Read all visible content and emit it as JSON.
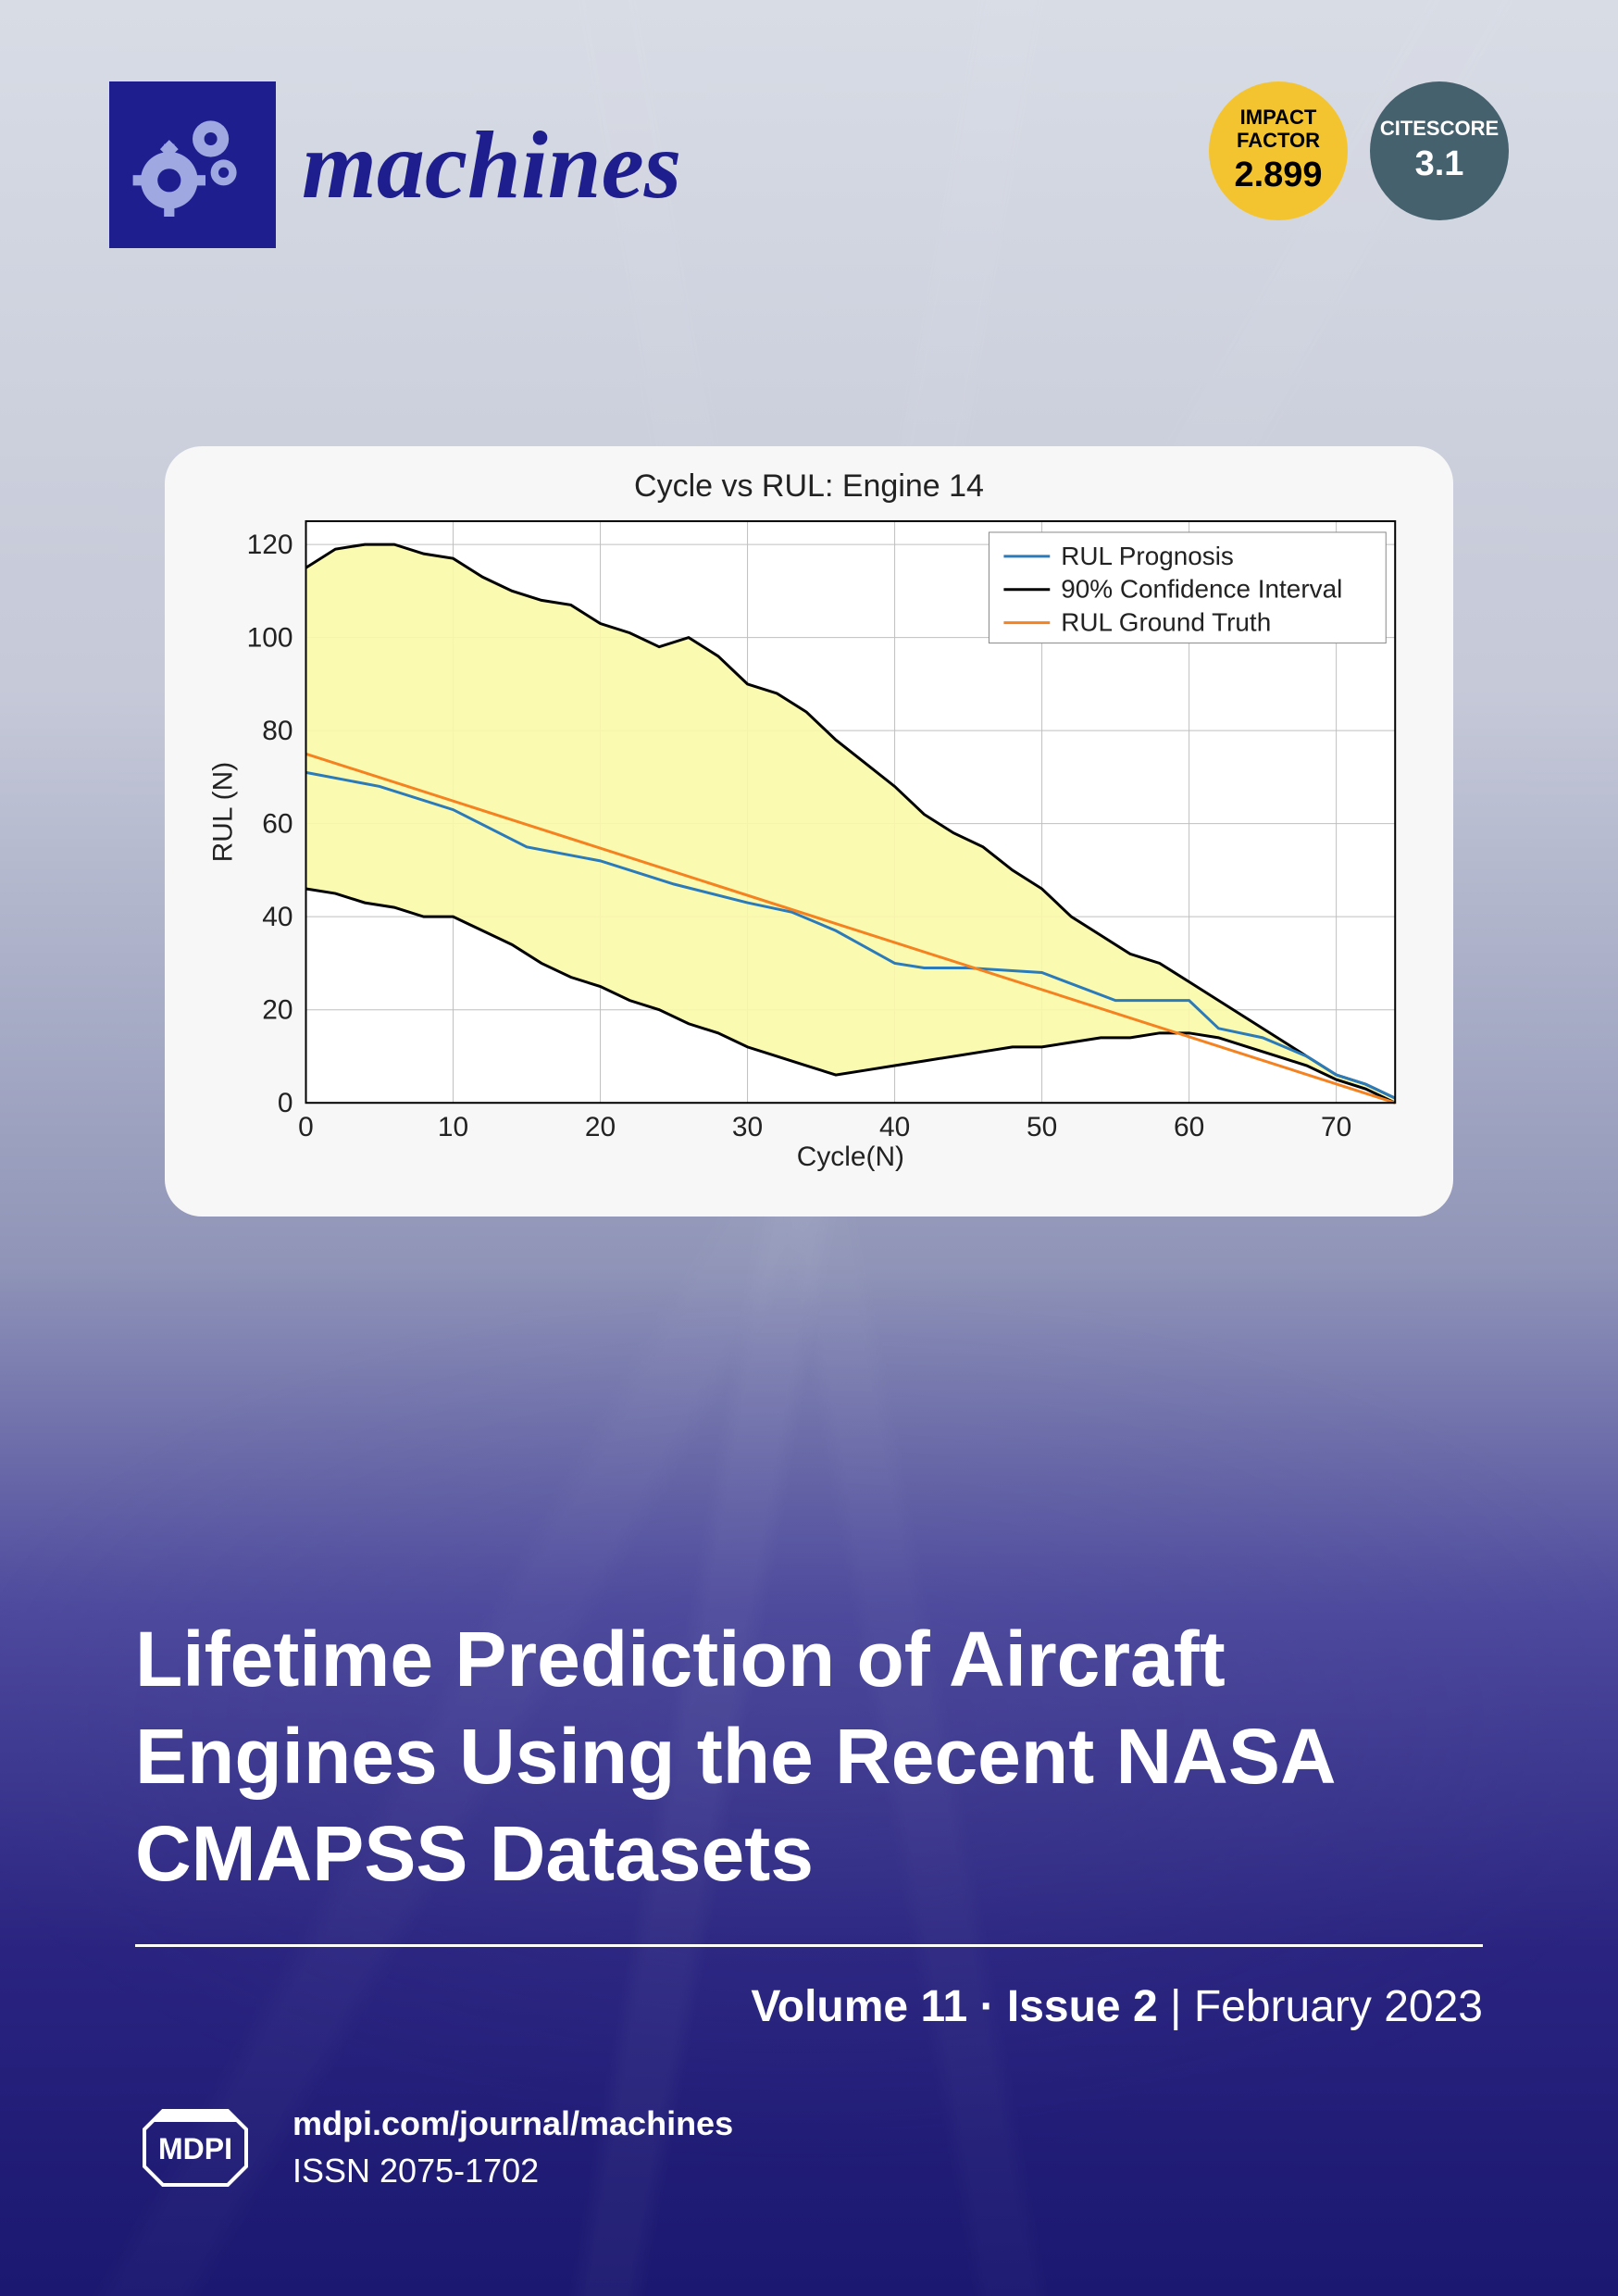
{
  "header": {
    "journal_name": "machines",
    "impact_label1": "IMPACT",
    "impact_label2": "FACTOR",
    "impact_value": "2.899",
    "cite_label": "CITESCORE",
    "cite_value": "3.1"
  },
  "chart": {
    "type": "line",
    "title": "Cycle vs RUL: Engine 14",
    "xlabel": "Cycle(N)",
    "ylabel": "RUL (N)",
    "xlim": [
      0,
      74
    ],
    "ylim": [
      0,
      125
    ],
    "xticks": [
      0,
      10,
      20,
      30,
      40,
      50,
      60,
      70
    ],
    "yticks": [
      0,
      20,
      40,
      60,
      80,
      100,
      120
    ],
    "background_color": "#ffffff",
    "grid_color": "#bfbfbf",
    "plot_border_color": "#000000",
    "line_width": 3,
    "ci_fill_color": "#fbf9a8",
    "ci_fill_opacity": 0.9,
    "legend_position": "top-right",
    "legend": {
      "items": [
        {
          "label": "RUL Prognosis",
          "color": "#2b7bba"
        },
        {
          "label": "90% Confidence Interval",
          "color": "#000000"
        },
        {
          "label": "RUL Ground Truth",
          "color": "#f58220"
        }
      ]
    },
    "ground_truth": {
      "color": "#f58220",
      "x": [
        0,
        74
      ],
      "y": [
        75,
        0
      ]
    },
    "prognosis": {
      "color": "#2b7bba",
      "x": [
        0,
        5,
        10,
        15,
        20,
        25,
        30,
        33,
        36,
        40,
        42,
        45,
        50,
        55,
        58,
        60,
        62,
        65,
        68,
        70,
        72,
        74
      ],
      "y": [
        71,
        68,
        63,
        55,
        52,
        47,
        43,
        41,
        37,
        30,
        29,
        29,
        28,
        22,
        22,
        22,
        16,
        14,
        10,
        6,
        4,
        1
      ]
    },
    "ci_upper": {
      "color": "#000000",
      "x": [
        0,
        2,
        4,
        6,
        8,
        10,
        12,
        14,
        16,
        18,
        20,
        22,
        24,
        26,
        28,
        30,
        32,
        34,
        36,
        38,
        40,
        42,
        44,
        46,
        48,
        50,
        52,
        54,
        56,
        58,
        60,
        62,
        64,
        66,
        68,
        70,
        72,
        74
      ],
      "y": [
        115,
        119,
        120,
        120,
        118,
        117,
        113,
        110,
        108,
        107,
        103,
        101,
        98,
        100,
        96,
        90,
        88,
        84,
        78,
        73,
        68,
        62,
        58,
        55,
        50,
        46,
        40,
        36,
        32,
        30,
        26,
        22,
        18,
        14,
        10,
        6,
        4,
        1
      ]
    },
    "ci_lower": {
      "color": "#000000",
      "x": [
        0,
        2,
        4,
        6,
        8,
        10,
        12,
        14,
        16,
        18,
        20,
        22,
        24,
        26,
        28,
        30,
        32,
        34,
        36,
        38,
        40,
        42,
        44,
        46,
        48,
        50,
        52,
        54,
        56,
        58,
        60,
        62,
        64,
        66,
        68,
        70,
        72,
        74
      ],
      "y": [
        46,
        45,
        43,
        42,
        40,
        40,
        37,
        34,
        30,
        27,
        25,
        22,
        20,
        17,
        15,
        12,
        10,
        8,
        6,
        7,
        8,
        9,
        10,
        11,
        12,
        12,
        13,
        14,
        14,
        15,
        15,
        14,
        12,
        10,
        8,
        5,
        3,
        0
      ]
    },
    "axis_fontsize": 30,
    "tick_fontsize": 30
  },
  "article": {
    "title": "Lifetime Prediction of Aircraft Engines Using the Recent NASA CMAPSS Datasets"
  },
  "issue": {
    "volume": "Volume 11",
    "dot": "·",
    "issue": "Issue 2",
    "sep": "|",
    "date": "February 2023"
  },
  "footer": {
    "url": "mdpi.com/journal/machines",
    "issn": "ISSN 2075-1702"
  },
  "colors": {
    "logo_bg": "#1e1e8f",
    "gear_fill": "#9fa8e0",
    "impact_bg": "#f4c430",
    "cite_bg": "#46616e"
  }
}
